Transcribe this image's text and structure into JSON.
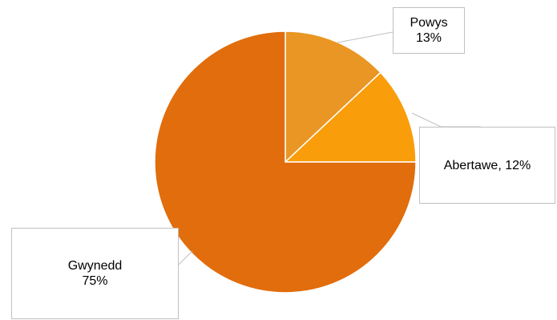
{
  "chart_data": {
    "type": "pie",
    "title": "",
    "slices": [
      {
        "label": "Powys",
        "value": 13,
        "display_value": "13%",
        "color": "#E99624"
      },
      {
        "label": "Abertawe",
        "value": 12,
        "display_value": "12%",
        "color": "#FA9D0A"
      },
      {
        "label": "Gwynedd",
        "value": 75,
        "display_value": "75%",
        "color": "#E16D0C"
      }
    ],
    "labels": {
      "powys": {
        "name": "Powys",
        "value": "13%"
      },
      "abertawe": {
        "text": "Abertawe, 12%"
      },
      "gwynedd": {
        "name": "Gwynedd",
        "value": "75%"
      }
    },
    "slice_border_color": "#ffffff",
    "leader_line_color": "#c0c0c0",
    "legend": "none"
  }
}
